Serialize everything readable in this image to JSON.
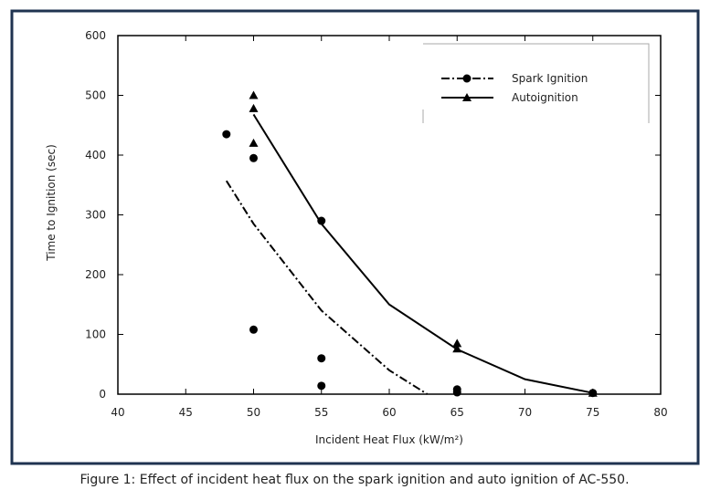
{
  "chart_data": {
    "type": "scatter",
    "caption": "Figure 1: Effect of incident heat flux on the spark ignition and auto ignition of AC-550.",
    "x_label": "Incident Heat Flux (kW/m²)",
    "y_label": "Time to Ignition (sec)",
    "xlim": [
      40,
      80
    ],
    "xticks": [
      40,
      45,
      50,
      55,
      60,
      65,
      70,
      75,
      80
    ],
    "ylim": [
      0,
      600
    ],
    "yticks": [
      0,
      100,
      200,
      300,
      400,
      500,
      600
    ],
    "grid": false,
    "legend": "upper right",
    "series": [
      {
        "name": "Spark Ignition",
        "color": "#000000",
        "marker": "circle",
        "line_style": "dashdot",
        "x": [
          48,
          50,
          50,
          55,
          55,
          55,
          65,
          65,
          75
        ],
        "values": [
          435,
          395,
          108,
          290,
          60,
          14,
          8,
          3,
          2
        ],
        "fit": {
          "x": [
            48,
            50,
            55,
            60,
            62.8
          ],
          "values": [
            357,
            285,
            140,
            40,
            0
          ]
        }
      },
      {
        "name": "Autoignition",
        "color": "#000000",
        "marker": "triangle",
        "line_style": "solid",
        "x": [
          50,
          50,
          50,
          65,
          65,
          75
        ],
        "values": [
          500,
          478,
          420,
          85,
          76,
          2
        ],
        "fit": {
          "x": [
            50,
            55,
            60,
            65,
            70,
            75
          ],
          "values": [
            468,
            285,
            150,
            75,
            25,
            2
          ]
        }
      }
    ]
  }
}
